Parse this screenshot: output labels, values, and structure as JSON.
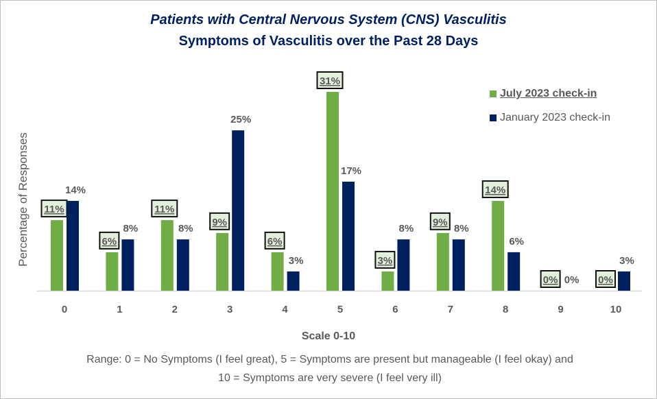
{
  "chart_data": {
    "type": "bar",
    "title": "Patients with Central Nervous System (CNS) Vasculitis",
    "subtitle": "Symptoms of Vasculitis over the Past 28 Days",
    "xlabel": "Scale 0-10",
    "ylabel": "Percentage of Responses",
    "note": "Range: 0 = No Symptoms (I feel great), 5 = Symptoms are present but manageable (I feel okay) and 10 = Symptoms are very severe (I feel very ill)",
    "categories": [
      "0",
      "1",
      "2",
      "3",
      "4",
      "5",
      "6",
      "7",
      "8",
      "9",
      "10"
    ],
    "ylim": [
      0,
      32
    ],
    "grid": false,
    "legend_position": "top-right",
    "value_unit": "%",
    "series": [
      {
        "name": "July 2023 check-in",
        "color": "#70AD47",
        "values": [
          11,
          6,
          11,
          9,
          6,
          31,
          3,
          9,
          14,
          0,
          0
        ]
      },
      {
        "name": "January 2023 check-in",
        "color": "#002060",
        "values": [
          14,
          8,
          8,
          25,
          3,
          17,
          8,
          8,
          6,
          0,
          3
        ]
      }
    ]
  }
}
